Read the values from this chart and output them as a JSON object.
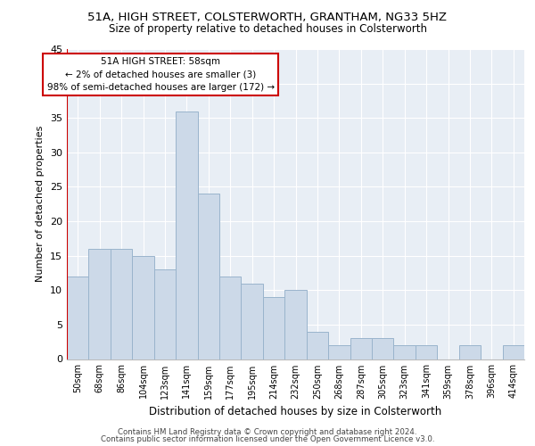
{
  "title_line1": "51A, HIGH STREET, COLSTERWORTH, GRANTHAM, NG33 5HZ",
  "title_line2": "Size of property relative to detached houses in Colsterworth",
  "xlabel": "Distribution of detached houses by size in Colsterworth",
  "ylabel": "Number of detached properties",
  "bar_labels": [
    "50sqm",
    "68sqm",
    "86sqm",
    "104sqm",
    "123sqm",
    "141sqm",
    "159sqm",
    "177sqm",
    "195sqm",
    "214sqm",
    "232sqm",
    "250sqm",
    "268sqm",
    "287sqm",
    "305sqm",
    "323sqm",
    "341sqm",
    "359sqm",
    "378sqm",
    "396sqm",
    "414sqm"
  ],
  "bar_values": [
    12,
    16,
    16,
    15,
    13,
    36,
    24,
    12,
    11,
    9,
    10,
    4,
    2,
    3,
    3,
    2,
    2,
    0,
    2,
    0,
    2
  ],
  "bar_color": "#ccd9e8",
  "bar_edgecolor": "#9ab4cc",
  "annotation_line1": "51A HIGH STREET: 58sqm",
  "annotation_line2": "← 2% of detached houses are smaller (3)",
  "annotation_line3": "98% of semi-detached houses are larger (172) →",
  "annotation_box_facecolor": "#ffffff",
  "annotation_box_edgecolor": "#cc0000",
  "vline_x": -0.5,
  "ylim": [
    0,
    45
  ],
  "yticks": [
    0,
    5,
    10,
    15,
    20,
    25,
    30,
    35,
    40,
    45
  ],
  "plot_bg_color": "#e8eef5",
  "grid_color": "#ffffff",
  "footer_line1": "Contains HM Land Registry data © Crown copyright and database right 2024.",
  "footer_line2": "Contains public sector information licensed under the Open Government Licence v3.0."
}
